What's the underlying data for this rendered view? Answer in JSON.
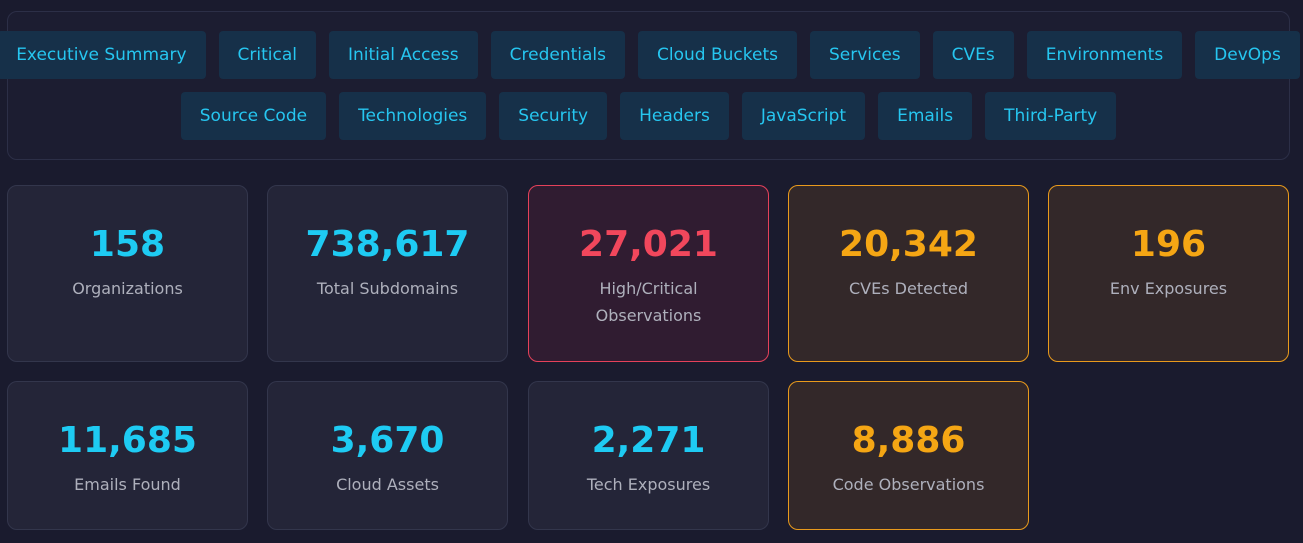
{
  "nav": {
    "row1": [
      {
        "label": "Executive Summary"
      },
      {
        "label": "Critical"
      },
      {
        "label": "Initial Access"
      },
      {
        "label": "Credentials"
      },
      {
        "label": "Cloud Buckets"
      },
      {
        "label": "Services"
      },
      {
        "label": "CVEs"
      },
      {
        "label": "Environments"
      },
      {
        "label": "DevOps"
      }
    ],
    "row2": [
      {
        "label": "Source Code"
      },
      {
        "label": "Technologies"
      },
      {
        "label": "Security"
      },
      {
        "label": "Headers"
      },
      {
        "label": "JavaScript"
      },
      {
        "label": "Emails"
      },
      {
        "label": "Third-Party"
      }
    ]
  },
  "stats": [
    {
      "value": "158",
      "label": "Organizations",
      "tone": "blue"
    },
    {
      "value": "738,617",
      "label": "Total Subdomains",
      "tone": "blue"
    },
    {
      "value": "27,021",
      "label": "High/Critical Observations",
      "tone": "red"
    },
    {
      "value": "20,342",
      "label": "CVEs Detected",
      "tone": "orange"
    },
    {
      "value": "196",
      "label": "Env Exposures",
      "tone": "orange"
    },
    {
      "value": "11,685",
      "label": "Emails Found",
      "tone": "blue"
    },
    {
      "value": "3,670",
      "label": "Cloud Assets",
      "tone": "blue"
    },
    {
      "value": "2,271",
      "label": "Tech Exposures",
      "tone": "blue"
    },
    {
      "value": "8,886",
      "label": "Code Observations",
      "tone": "orange"
    }
  ],
  "colors": {
    "background": "#1a1b2e",
    "accent_blue": "#1ecbf3",
    "accent_red": "#f1475c",
    "accent_orange": "#f5a614",
    "nav_button_bg": "#163049"
  }
}
